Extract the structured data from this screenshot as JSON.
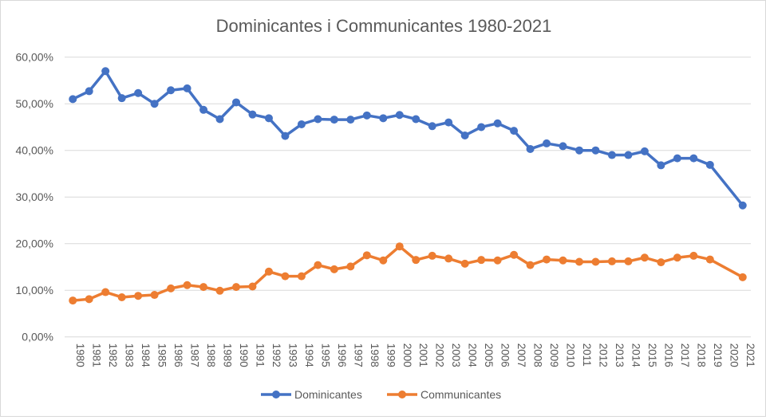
{
  "chart_data": {
    "type": "line",
    "title": "Dominicantes i Communicantes 1980-2021",
    "xlabel": "",
    "ylabel": "",
    "ylim": [
      0,
      60
    ],
    "yticks": [
      "0,00%",
      "10,00%",
      "20,00%",
      "30,00%",
      "40,00%",
      "50,00%",
      "60,00%"
    ],
    "grid": true,
    "legend_position": "bottom",
    "categories": [
      "1980",
      "1981",
      "1982",
      "1983",
      "1984",
      "1985",
      "1986",
      "1987",
      "1988",
      "1989",
      "1990",
      "1991",
      "1992",
      "1993",
      "1994",
      "1995",
      "1996",
      "1997",
      "1998",
      "1999",
      "2000",
      "2001",
      "2002",
      "2003",
      "2004",
      "2005",
      "2006",
      "2007",
      "2008",
      "2009",
      "2010",
      "2011",
      "2012",
      "2013",
      "2014",
      "2015",
      "2016",
      "2017",
      "2018",
      "2019",
      "2020",
      "2021"
    ],
    "series": [
      {
        "name": "Dominicantes",
        "color": "#4472C4",
        "values": [
          51.0,
          52.7,
          57.0,
          51.2,
          52.3,
          50.0,
          52.9,
          53.3,
          48.7,
          46.7,
          50.3,
          47.7,
          46.9,
          43.1,
          45.6,
          46.7,
          46.6,
          46.6,
          47.5,
          46.9,
          47.6,
          46.7,
          45.2,
          46.0,
          43.2,
          45.0,
          45.8,
          44.2,
          40.3,
          41.5,
          40.9,
          40.0,
          40.0,
          39.0,
          39.0,
          39.8,
          36.8,
          38.3,
          38.3,
          36.9,
          null,
          28.2
        ]
      },
      {
        "name": "Communicantes",
        "color": "#ED7D31",
        "values": [
          7.8,
          8.1,
          9.6,
          8.5,
          8.8,
          9.0,
          10.4,
          11.1,
          10.7,
          9.9,
          10.7,
          10.8,
          14.0,
          13.0,
          13.0,
          15.4,
          14.5,
          15.1,
          17.5,
          16.4,
          19.4,
          16.5,
          17.4,
          16.8,
          15.7,
          16.5,
          16.4,
          17.6,
          15.4,
          16.6,
          16.4,
          16.1,
          16.1,
          16.2,
          16.2,
          17.0,
          16.0,
          17.0,
          17.4,
          16.6,
          null,
          12.8
        ]
      }
    ]
  }
}
